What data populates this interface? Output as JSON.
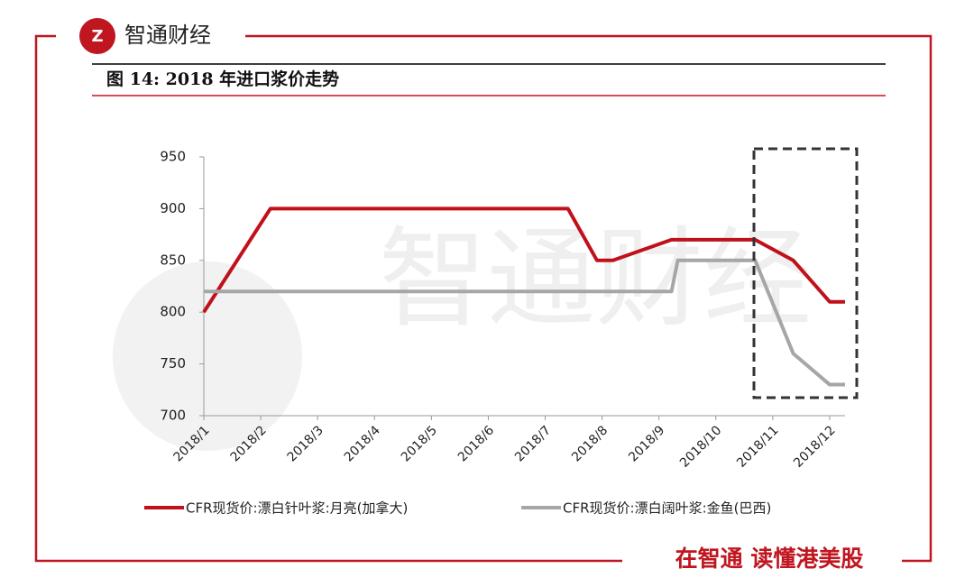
{
  "brand": "智通财经",
  "figure_title": "图 14:  2018 年进口浆价走势",
  "watermark": "智通财经",
  "footer": "在智通  读懂港美股",
  "chart_data": {
    "type": "line",
    "xlim": [
      1,
      12.27
    ],
    "xticks": [
      {
        "value": 1,
        "label": "2018/1"
      },
      {
        "value": 2,
        "label": "2018/2"
      },
      {
        "value": 3,
        "label": "2018/3"
      },
      {
        "value": 4,
        "label": "2018/4"
      },
      {
        "value": 5,
        "label": "2018/5"
      },
      {
        "value": 6,
        "label": "2018/6"
      },
      {
        "value": 7,
        "label": "2018/7"
      },
      {
        "value": 8,
        "label": "2018/8"
      },
      {
        "value": 9,
        "label": "2018/9"
      },
      {
        "value": 10,
        "label": "2018/10"
      },
      {
        "value": 11,
        "label": "2018/11"
      },
      {
        "value": 12,
        "label": "2018/12"
      }
    ],
    "ylim": [
      700,
      950
    ],
    "yticks": [
      700,
      750,
      800,
      850,
      900,
      950
    ],
    "series": [
      {
        "name": "CFR现货价:漂白针叶浆:月亮(加拿大)",
        "color": "#c0111b",
        "x": [
          1,
          2.17,
          7.4,
          7.91,
          8.19,
          9.22,
          10.69,
          11.36,
          12,
          12.27
        ],
        "values": [
          800,
          900,
          900,
          850,
          850,
          870,
          870,
          850,
          810,
          810
        ]
      },
      {
        "name": "CFR现货价:漂白阔叶浆:金鱼(巴西)",
        "color": "#a6a6a6",
        "x": [
          1,
          9.22,
          9.33,
          10.69,
          11.36,
          12,
          12.27
        ],
        "values": [
          820,
          820,
          850,
          850,
          760,
          730,
          730
        ]
      }
    ]
  }
}
